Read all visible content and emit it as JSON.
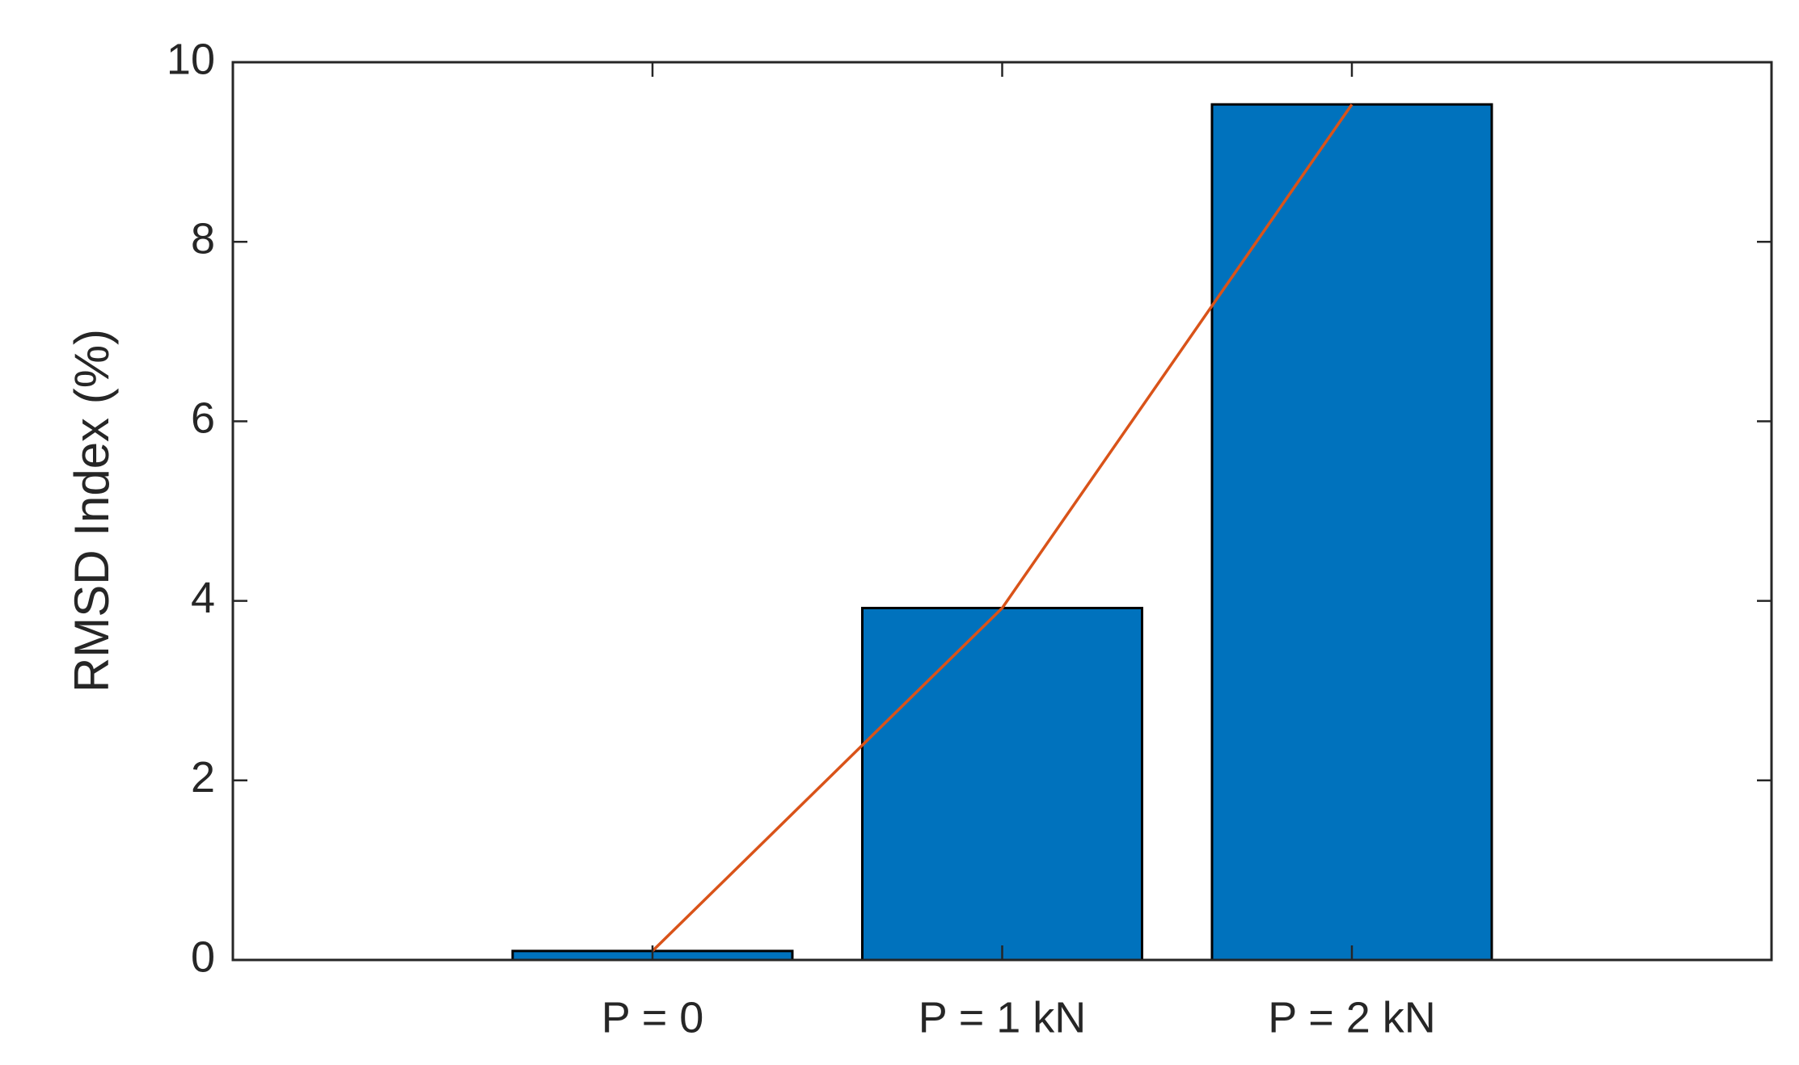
{
  "chart_data": {
    "type": "bar",
    "y_label": "RMSD Index (%)",
    "categories": [
      "P = 0",
      "P = 1 kN",
      "P = 2 kN"
    ],
    "series": [
      {
        "type": "bar",
        "color": "#0072bd",
        "values": [
          0.1,
          3.92,
          9.53
        ]
      },
      {
        "type": "line",
        "color": "#d95319",
        "values": [
          0.1,
          3.92,
          9.53
        ]
      }
    ],
    "ylim": [
      0,
      10
    ],
    "yticks": [
      0,
      2,
      4,
      6,
      8,
      10
    ],
    "grid": false
  }
}
